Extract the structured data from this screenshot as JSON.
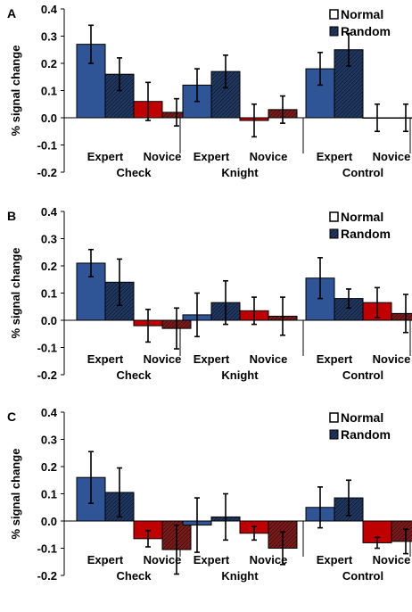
{
  "legend": {
    "normal_label": "Normal",
    "random_label": "Random"
  },
  "ylabel": "% signal change",
  "colors": {
    "expert_normal": "#2f5597",
    "expert_random": "#1f3864",
    "novice_normal": "#c00000",
    "novice_random": "#7f1a1a",
    "errorbar": "#000000",
    "axis": "#000000"
  },
  "y_ticks": [
    "0.4",
    "0.3",
    "0.2",
    "0.1",
    "0.0",
    "-0.1",
    "-0.2"
  ],
  "chart_data": [
    {
      "panel": "A",
      "type": "bar",
      "ylim": [
        -0.2,
        0.4
      ],
      "groups": [
        "Check",
        "Knight",
        "Control"
      ],
      "subgroups": [
        "Expert",
        "Novice"
      ],
      "series": [
        {
          "name": "Normal",
          "values": [
            [
              0.27,
              0.06
            ],
            [
              0.12,
              -0.01
            ],
            [
              0.18,
              0.0
            ]
          ],
          "errors": [
            [
              0.07,
              0.07
            ],
            [
              0.06,
              0.06
            ],
            [
              0.06,
              0.05
            ]
          ]
        },
        {
          "name": "Random",
          "values": [
            [
              0.16,
              0.02
            ],
            [
              0.17,
              0.03
            ],
            [
              0.25,
              0.0
            ]
          ],
          "errors": [
            [
              0.06,
              0.05
            ],
            [
              0.06,
              0.05
            ],
            [
              0.06,
              0.05
            ]
          ]
        }
      ]
    },
    {
      "panel": "B",
      "type": "bar",
      "ylim": [
        -0.2,
        0.4
      ],
      "groups": [
        "Check",
        "Knight",
        "Control"
      ],
      "subgroups": [
        "Expert",
        "Novice"
      ],
      "series": [
        {
          "name": "Normal",
          "values": [
            [
              0.21,
              -0.02
            ],
            [
              0.02,
              0.035
            ],
            [
              0.155,
              0.065
            ]
          ],
          "errors": [
            [
              0.05,
              0.06
            ],
            [
              0.08,
              0.05
            ],
            [
              0.075,
              0.055
            ]
          ]
        },
        {
          "name": "Random",
          "values": [
            [
              0.14,
              -0.03
            ],
            [
              0.065,
              0.015
            ],
            [
              0.08,
              0.025
            ]
          ],
          "errors": [
            [
              0.085,
              0.075
            ],
            [
              0.08,
              0.07
            ],
            [
              0.035,
              0.07
            ]
          ]
        }
      ]
    },
    {
      "panel": "C",
      "type": "bar",
      "ylim": [
        -0.2,
        0.4
      ],
      "groups": [
        "Check",
        "Knight",
        "Control"
      ],
      "subgroups": [
        "Expert",
        "Novice"
      ],
      "series": [
        {
          "name": "Normal",
          "values": [
            [
              0.16,
              -0.065
            ],
            [
              -0.015,
              -0.045
            ],
            [
              0.05,
              -0.08
            ]
          ],
          "errors": [
            [
              0.095,
              0.03
            ],
            [
              0.1,
              0.025
            ],
            [
              0.075,
              0.02
            ]
          ]
        },
        {
          "name": "Random",
          "values": [
            [
              0.105,
              -0.105
            ],
            [
              0.015,
              -0.1
            ],
            [
              0.085,
              -0.075
            ]
          ],
          "errors": [
            [
              0.09,
              0.09
            ],
            [
              0.085,
              0.06
            ],
            [
              0.065,
              0.045
            ]
          ]
        }
      ]
    }
  ]
}
